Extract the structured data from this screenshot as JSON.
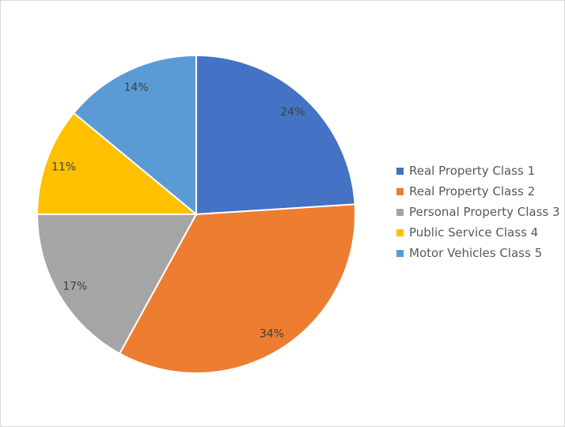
{
  "chart_data": {
    "type": "pie",
    "title": "",
    "categories": [
      "Real Property Class 1",
      "Real Property Class 2",
      "Personal Property Class 3",
      "Public Service Class 4",
      "Motor Vehicles Class 5"
    ],
    "values": [
      24,
      34,
      17,
      11,
      14
    ],
    "data_labels": [
      "24%",
      "34%",
      "17%",
      "11%",
      "14%"
    ],
    "colors": [
      "#4472C4",
      "#ED7D31",
      "#A5A5A5",
      "#FFC000",
      "#5B9BD5"
    ],
    "start_angle": "top, clockwise",
    "legend_position": "right"
  }
}
